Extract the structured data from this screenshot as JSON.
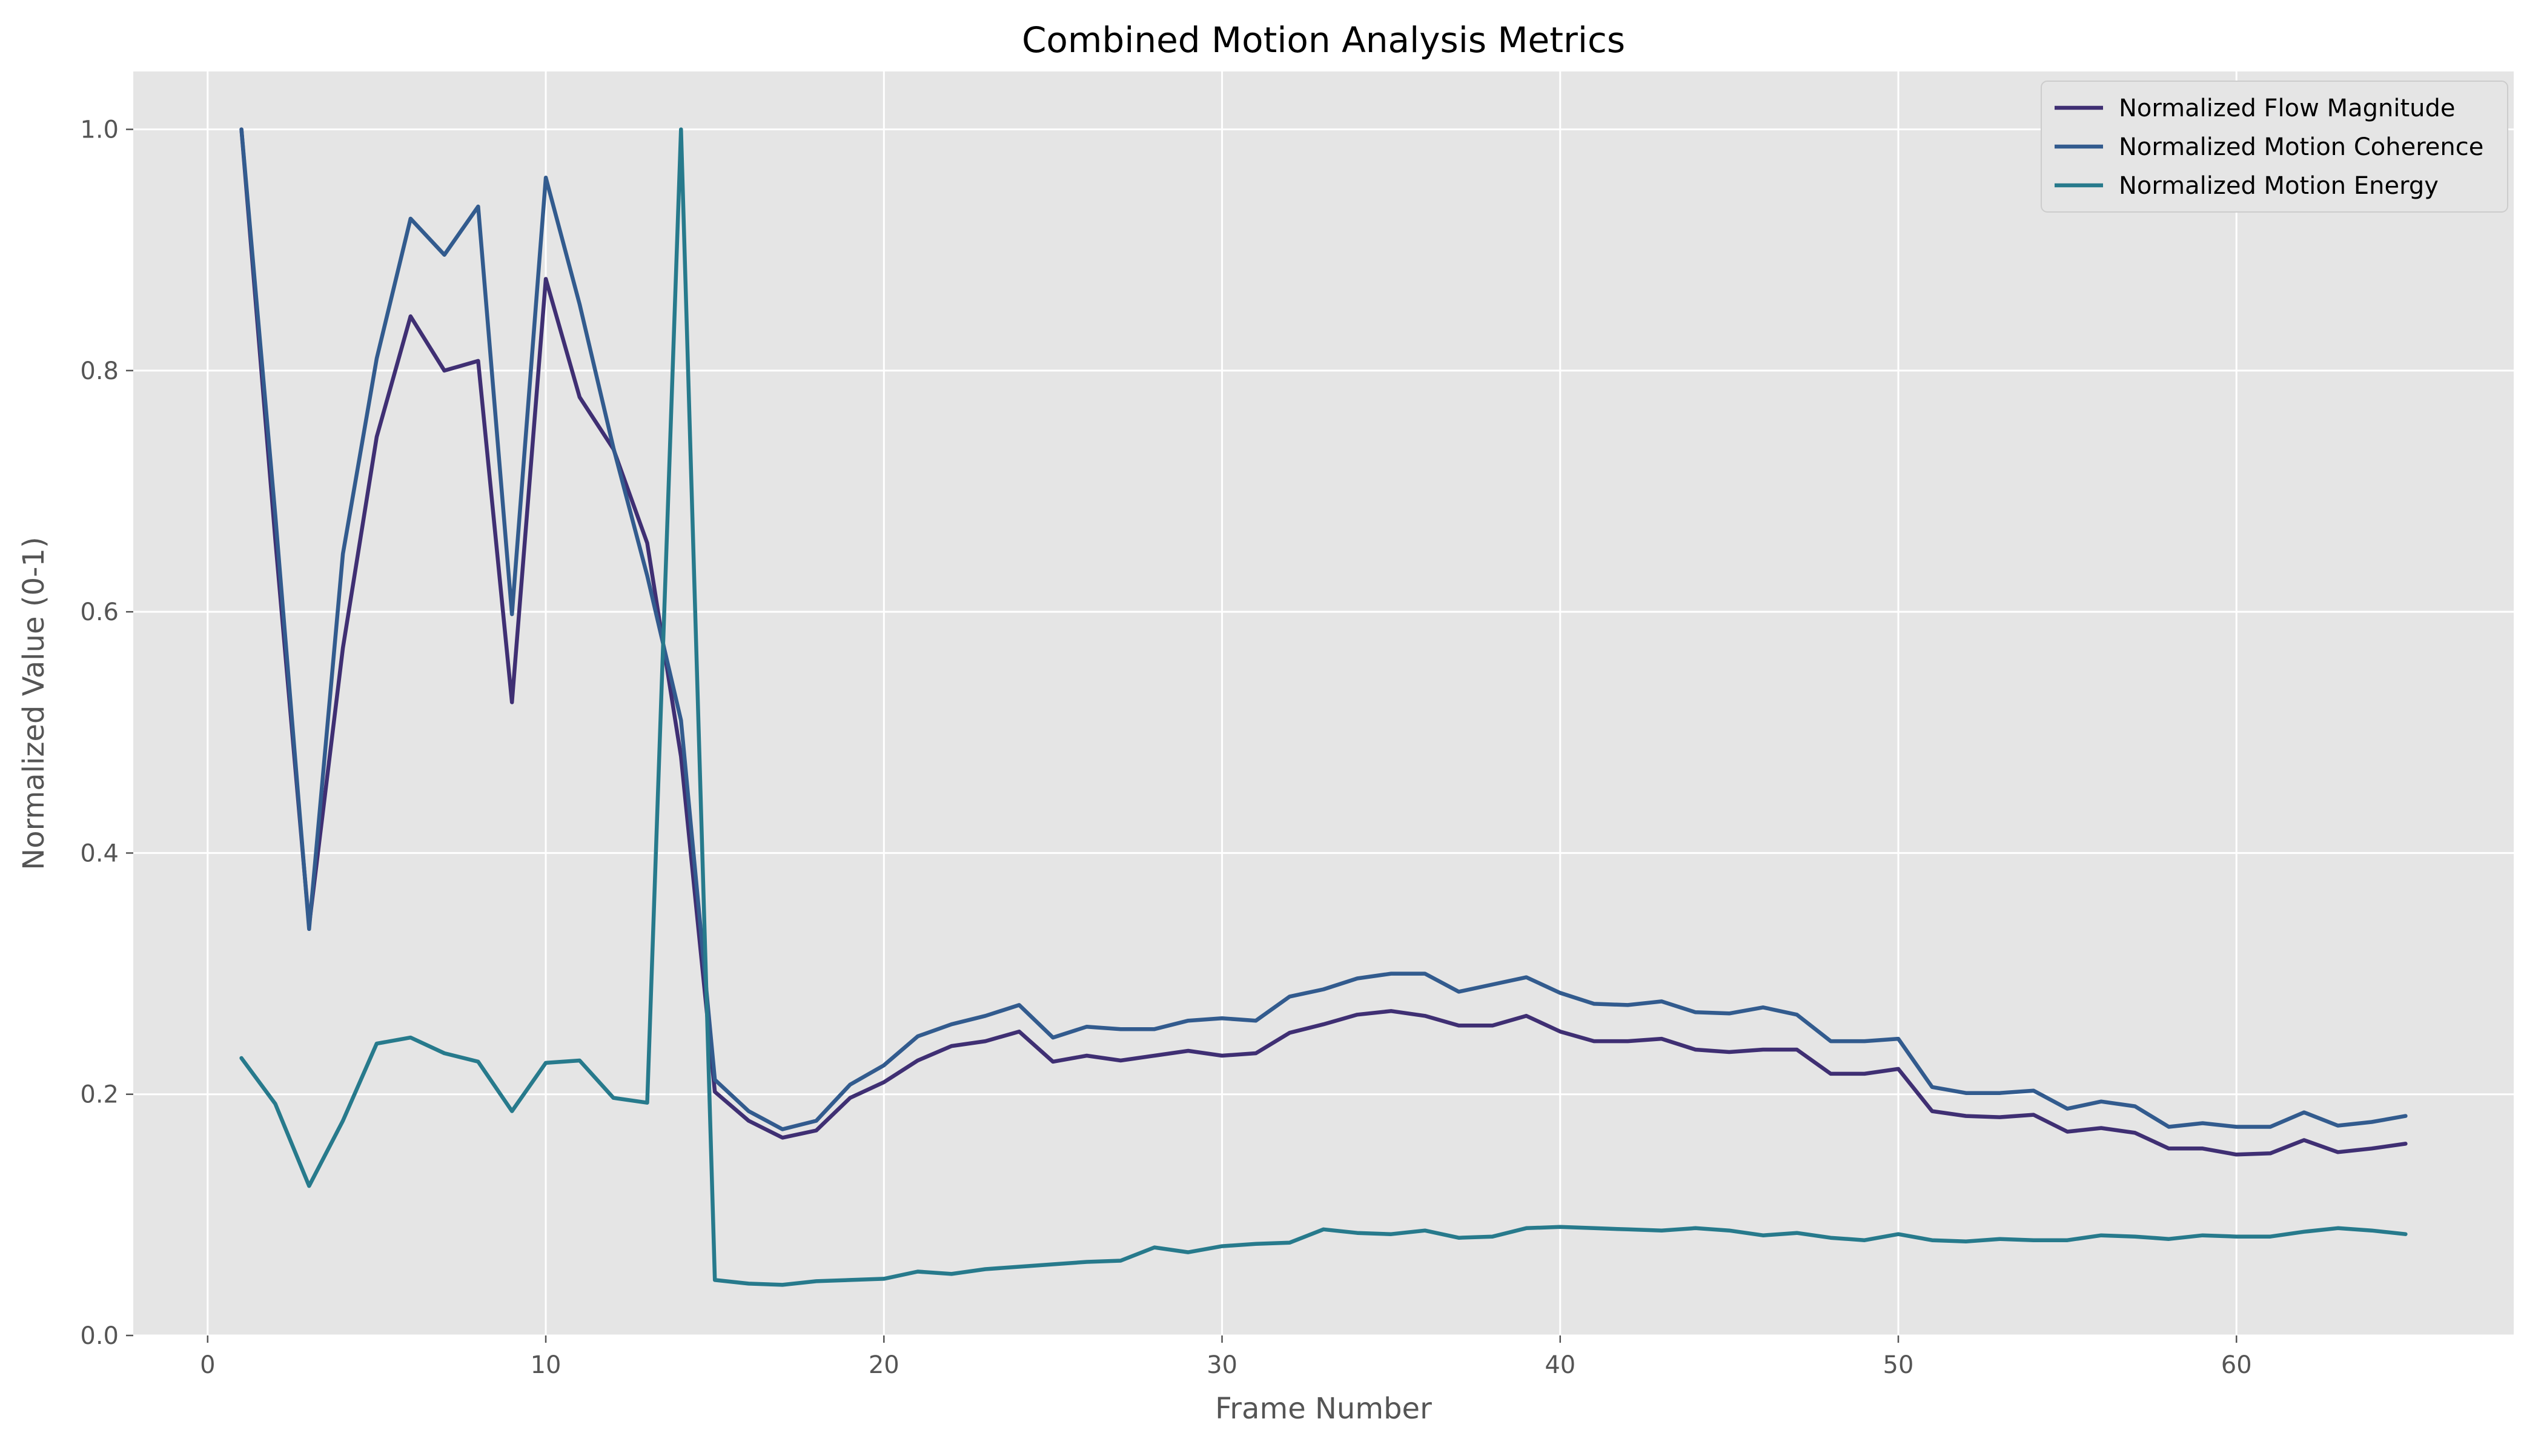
{
  "chart_data": {
    "type": "line",
    "title": "Combined Motion Analysis Metrics",
    "xlabel": "Frame Number",
    "ylabel": "Normalized Value (0-1)",
    "xlim": [
      -2.2,
      68.2
    ],
    "ylim": [
      0.0,
      1.048
    ],
    "x_ticks": [
      0,
      10,
      20,
      30,
      40,
      50,
      60
    ],
    "y_ticks": [
      0.0,
      0.2,
      0.4,
      0.6,
      0.8,
      1.0
    ],
    "grid": true,
    "legend_position": "top-right",
    "x": [
      1,
      2,
      3,
      4,
      5,
      6,
      7,
      8,
      9,
      10,
      11,
      12,
      13,
      14,
      15,
      16,
      17,
      18,
      19,
      20,
      21,
      22,
      23,
      24,
      25,
      26,
      27,
      28,
      29,
      30,
      31,
      32,
      33,
      34,
      35,
      36,
      37,
      38,
      39,
      40,
      41,
      42,
      43,
      44,
      45,
      46,
      47,
      48,
      49,
      50,
      51,
      52,
      53,
      54,
      55,
      56,
      57,
      58,
      59,
      60,
      61,
      62,
      63,
      64,
      65
    ],
    "series": [
      {
        "name": "Normalized Flow Magnitude",
        "color": "#3f2f73",
        "values": [
          1.0,
          0.66,
          0.34,
          0.57,
          0.745,
          0.845,
          0.8,
          0.808,
          0.525,
          0.876,
          0.778,
          0.735,
          0.657,
          0.48,
          0.202,
          0.178,
          0.164,
          0.17,
          0.197,
          0.21,
          0.228,
          0.24,
          0.244,
          0.252,
          0.227,
          0.232,
          0.228,
          0.232,
          0.236,
          0.232,
          0.234,
          0.251,
          0.258,
          0.266,
          0.269,
          0.265,
          0.257,
          0.257,
          0.265,
          0.252,
          0.244,
          0.244,
          0.246,
          0.237,
          0.235,
          0.237,
          0.237,
          0.217,
          0.217,
          0.221,
          0.186,
          0.182,
          0.181,
          0.183,
          0.169,
          0.172,
          0.168,
          0.155,
          0.155,
          0.15,
          0.151,
          0.162,
          0.152,
          0.155,
          0.159
        ]
      },
      {
        "name": "Normalized Motion Coherence",
        "color": "#325b8e",
        "values": [
          1.0,
          0.68,
          0.337,
          0.648,
          0.81,
          0.926,
          0.896,
          0.936,
          0.598,
          0.96,
          0.855,
          0.736,
          0.63,
          0.51,
          0.212,
          0.186,
          0.171,
          0.178,
          0.208,
          0.224,
          0.248,
          0.258,
          0.265,
          0.274,
          0.247,
          0.256,
          0.254,
          0.254,
          0.261,
          0.263,
          0.261,
          0.281,
          0.287,
          0.296,
          0.3,
          0.3,
          0.285,
          0.291,
          0.297,
          0.284,
          0.275,
          0.274,
          0.277,
          0.268,
          0.267,
          0.272,
          0.266,
          0.244,
          0.244,
          0.246,
          0.206,
          0.201,
          0.201,
          0.203,
          0.188,
          0.194,
          0.19,
          0.173,
          0.176,
          0.173,
          0.173,
          0.185,
          0.174,
          0.177,
          0.182
        ]
      },
      {
        "name": "Normalized Motion Energy",
        "color": "#277a8c",
        "values": [
          0.23,
          0.192,
          0.124,
          0.178,
          0.242,
          0.247,
          0.234,
          0.227,
          0.186,
          0.226,
          0.228,
          0.197,
          0.193,
          1.0,
          0.046,
          0.043,
          0.042,
          0.045,
          0.046,
          0.047,
          0.053,
          0.051,
          0.055,
          0.057,
          0.059,
          0.061,
          0.062,
          0.073,
          0.069,
          0.074,
          0.076,
          0.077,
          0.088,
          0.085,
          0.084,
          0.087,
          0.081,
          0.082,
          0.089,
          0.09,
          0.089,
          0.088,
          0.087,
          0.089,
          0.087,
          0.083,
          0.085,
          0.081,
          0.079,
          0.084,
          0.079,
          0.078,
          0.08,
          0.079,
          0.079,
          0.083,
          0.082,
          0.08,
          0.083,
          0.082,
          0.082,
          0.086,
          0.089,
          0.087,
          0.084
        ]
      }
    ]
  }
}
